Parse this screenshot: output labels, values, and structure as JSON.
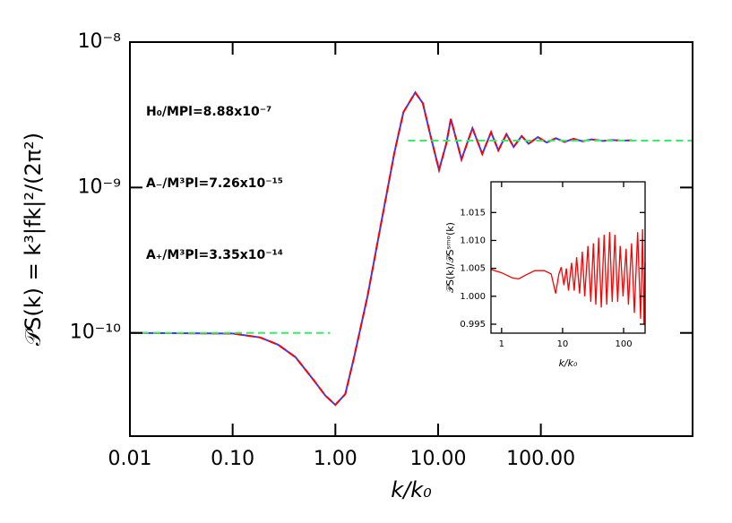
{
  "chart_data": [
    {
      "type": "line",
      "x_label": "k/k₀",
      "y_label": "𝒫S(k) = k³|fk|²/(2π²)",
      "x_scale": "log",
      "y_scale": "log",
      "xlim": [
        0.01,
        3000
      ],
      "ylim": [
        1.95e-11,
        1e-08
      ],
      "xticks": [
        {
          "value": 0.01,
          "label": "0.01"
        },
        {
          "value": 0.1,
          "label": "0.10"
        },
        {
          "value": 1,
          "label": "1.00"
        },
        {
          "value": 10,
          "label": "10.00"
        },
        {
          "value": 100,
          "label": "100.00"
        }
      ],
      "yticks": [
        {
          "value": 1e-10,
          "label": "10⁻¹⁰"
        },
        {
          "value": 1e-09,
          "label": "10⁻⁹"
        },
        {
          "value": 1e-08,
          "label": "10⁻⁸"
        }
      ],
      "annotations": [
        "H₀/MPl=8.88x10⁻⁷",
        "A₋/M³Pl=7.26x10⁻¹⁵",
        "A₊/M³Pl=3.35x10⁻¹⁴"
      ],
      "series": [
        {
          "color": "#3a3aff",
          "dashed": false,
          "x": [
            0.01,
            0.1,
            0.185,
            0.277,
            0.41,
            0.62,
            0.8,
            1.0,
            1.25,
            1.52,
            2.06,
            2.78,
            3.76,
            4.6,
            6.0,
            7.1,
            8.4,
            10.2,
            12.0,
            13.3,
            16.9,
            21.6,
            26.9,
            32.8,
            38.6,
            46.3,
            54.4,
            65,
            76,
            93.6,
            114,
            140,
            170,
            208,
            255,
            311,
            400,
            500,
            600,
            770
          ],
          "values": [
            1e-10,
            9.9e-11,
            9.3e-11,
            8.3e-11,
            6.8e-11,
            4.7e-11,
            3.7e-11,
            3.2e-11,
            3.8e-11,
            6.8e-11,
            1.8e-10,
            5.6e-10,
            1.75e-09,
            3.3e-09,
            4.5e-09,
            3.8e-09,
            2.3e-09,
            1.32e-09,
            2e-09,
            2.96e-09,
            1.56e-09,
            2.56e-09,
            1.7e-09,
            2.4e-09,
            1.8e-09,
            2.33e-09,
            1.9e-09,
            2.26e-09,
            2e-09,
            2.22e-09,
            2.04e-09,
            2.18e-09,
            2.06e-09,
            2.16e-09,
            2.08e-09,
            2.14e-09,
            2.09e-09,
            2.12e-09,
            2.1e-09,
            2.11e-09
          ]
        },
        {
          "color": "#ff0000",
          "dashed": true,
          "x": [
            0.01,
            0.1,
            0.185,
            0.277,
            0.41,
            0.62,
            0.8,
            1.0,
            1.25,
            1.52,
            2.06,
            2.78,
            3.76,
            4.6,
            6.0,
            7.1,
            8.4,
            10.2,
            12.0,
            13.3,
            16.9,
            21.6,
            26.9,
            32.8,
            38.6,
            46.3,
            54.4,
            65,
            76,
            93.6,
            114,
            140,
            170,
            208,
            255,
            311,
            400,
            500,
            600,
            770
          ],
          "values": [
            1e-10,
            9.9e-11,
            9.3e-11,
            8.3e-11,
            6.8e-11,
            4.7e-11,
            3.7e-11,
            3.2e-11,
            3.8e-11,
            6.8e-11,
            1.8e-10,
            5.6e-10,
            1.75e-09,
            3.3e-09,
            4.5e-09,
            3.8e-09,
            2.3e-09,
            1.32e-09,
            2e-09,
            2.96e-09,
            1.56e-09,
            2.56e-09,
            1.7e-09,
            2.4e-09,
            1.8e-09,
            2.33e-09,
            1.9e-09,
            2.26e-09,
            2e-09,
            2.22e-09,
            2.04e-09,
            2.18e-09,
            2.06e-09,
            2.16e-09,
            2.08e-09,
            2.14e-09,
            2.09e-09,
            2.12e-09,
            2.1e-09,
            2.11e-09
          ]
        },
        {
          "color": "#33ee66",
          "dashed": true,
          "x": [
            0.01,
            0.89
          ],
          "values": [
            1e-10,
            1e-10
          ]
        },
        {
          "color": "#33ee66",
          "dashed": true,
          "x": [
            5.1,
            3000
          ],
          "values": [
            2.1e-09,
            2.1e-09
          ]
        }
      ]
    },
    {
      "type": "line",
      "x_label": "k/k₀",
      "y_label": "𝒫S(k)/𝒫Sˢᵐᵒ(k)",
      "x_scale": "log",
      "y_scale": "linear",
      "xlim": [
        0.67,
        225
      ],
      "ylim": [
        0.9934,
        1.0205
      ],
      "xticks": [
        1,
        10,
        100
      ],
      "yticks": [
        0.995,
        {
          "value": 1,
          "label": "1.000"
        },
        1.005,
        {
          "value": 1.01,
          "label": "1.010"
        },
        1.015
      ],
      "series": [
        {
          "color": "#ff0000",
          "dashed": false,
          "x": [
            0.67,
            1.0,
            1.5,
            1.9,
            2.5,
            3.5,
            5,
            6.5,
            7.7,
            8.7,
            9.5,
            10.5,
            11.5,
            12.5,
            14,
            15.5,
            17,
            19,
            21,
            23,
            26,
            29,
            32,
            35,
            39,
            43,
            48,
            53,
            59,
            65,
            72,
            80,
            88,
            98,
            110,
            120,
            135,
            150,
            170,
            190,
            205,
            215,
            225
          ],
          "values": [
            1.0048,
            1.0042,
            1.0033,
            1.0031,
            1.0038,
            1.0046,
            1.0046,
            1.004,
            1.0005,
            1.004,
            1.0052,
            1.002,
            1.005,
            1.001,
            1.006,
            1.001,
            1.007,
            1.0005,
            1.008,
            1.0,
            1.009,
            0.999,
            1.0095,
            0.9985,
            1.0105,
            0.998,
            1.011,
            0.9985,
            1.0115,
            0.999,
            1.011,
            0.999,
            1.009,
            1.0,
            1.0085,
            0.9985,
            1.0095,
            0.997,
            1.0115,
            0.996,
            1.012,
            0.995,
            1.006
          ]
        }
      ]
    }
  ]
}
